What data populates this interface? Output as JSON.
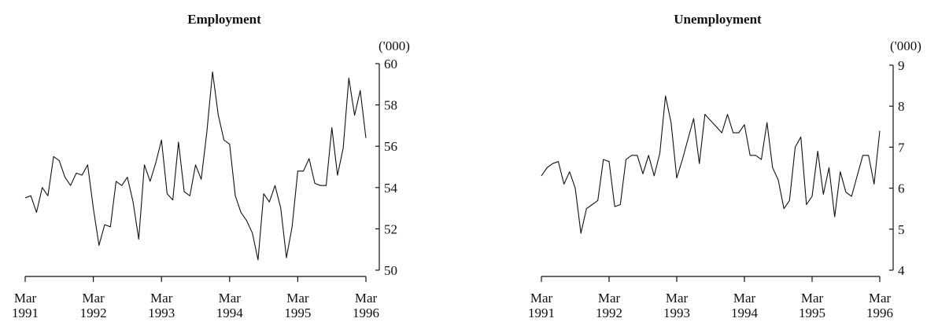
{
  "chart_data": [
    {
      "type": "line",
      "title": "Employment",
      "unit_label": "('000)",
      "ylim": [
        50,
        60
      ],
      "yticks": [
        50,
        52,
        54,
        56,
        58,
        60
      ],
      "xlim": [
        0,
        60
      ],
      "x_ticks": [
        {
          "x": 0,
          "month": "Mar",
          "year": "1991"
        },
        {
          "x": 12,
          "month": "Mar",
          "year": "1992"
        },
        {
          "x": 24,
          "month": "Mar",
          "year": "1993"
        },
        {
          "x": 36,
          "month": "Mar",
          "year": "1994"
        },
        {
          "x": 48,
          "month": "Mar",
          "year": "1995"
        },
        {
          "x": 60,
          "month": "Mar",
          "year": "1996"
        }
      ],
      "series": [
        {
          "values": [
            53.5,
            53.6,
            52.8,
            54.0,
            53.6,
            55.5,
            55.3,
            54.5,
            54.1,
            54.7,
            54.6,
            55.1,
            53.0,
            51.2,
            52.2,
            52.1,
            54.3,
            54.1,
            54.5,
            53.3,
            51.5,
            55.1,
            54.3,
            55.2,
            56.3,
            53.7,
            53.4,
            56.2,
            53.8,
            53.6,
            55.1,
            54.4,
            56.7,
            59.6,
            57.5,
            56.3,
            56.1,
            53.6,
            52.8,
            52.4,
            51.8,
            50.5,
            53.7,
            53.3,
            54.1,
            53.0,
            50.6,
            52.1,
            54.8,
            54.8,
            55.4,
            54.2,
            54.1,
            54.1,
            56.9,
            54.6,
            55.9,
            59.3,
            57.5,
            58.7,
            56.4
          ]
        }
      ]
    },
    {
      "type": "line",
      "title": "Unemployment",
      "unit_label": "('000)",
      "ylim": [
        4,
        9
      ],
      "yticks": [
        4,
        5,
        6,
        7,
        8,
        9
      ],
      "xlim": [
        0,
        60
      ],
      "x_ticks": [
        {
          "x": 0,
          "month": "Mar",
          "year": "1991"
        },
        {
          "x": 12,
          "month": "Mar",
          "year": "1992"
        },
        {
          "x": 24,
          "month": "Mar",
          "year": "1993"
        },
        {
          "x": 36,
          "month": "Mar",
          "year": "1994"
        },
        {
          "x": 48,
          "month": "Mar",
          "year": "1995"
        },
        {
          "x": 60,
          "month": "Mar",
          "year": "1996"
        }
      ],
      "series": [
        {
          "values": [
            6.3,
            6.5,
            6.6,
            6.65,
            6.1,
            6.4,
            6.0,
            4.9,
            5.5,
            5.6,
            5.7,
            6.7,
            6.65,
            5.55,
            5.6,
            6.7,
            6.8,
            6.8,
            6.35,
            6.8,
            6.3,
            6.85,
            8.25,
            7.6,
            6.25,
            6.7,
            7.2,
            7.7,
            6.6,
            7.8,
            7.65,
            7.5,
            7.35,
            7.8,
            7.35,
            7.35,
            7.55,
            6.8,
            6.8,
            6.7,
            7.6,
            6.5,
            6.2,
            5.5,
            5.7,
            7.0,
            7.25,
            5.6,
            5.8,
            6.9,
            5.85,
            6.5,
            5.3,
            6.4,
            5.9,
            5.8,
            6.3,
            6.8,
            6.8,
            6.1,
            7.4
          ]
        }
      ]
    }
  ]
}
